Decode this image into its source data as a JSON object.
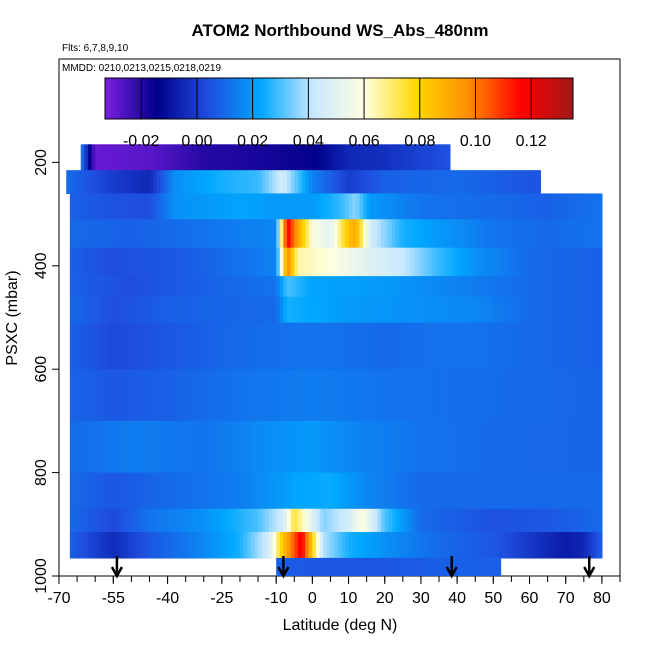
{
  "chart_data": {
    "type": "heatmap",
    "title": "ATOM2 Northbound WS_Abs_480nm",
    "flights_note": "Flts: 6,7,8,9,10",
    "dates_note": "MMDD: 0210,0213,0215,0218,0219",
    "xlabel": "Latitude (deg N)",
    "ylabel": "PSXC (mbar)",
    "xlim": [
      -70,
      85
    ],
    "ylim": [
      1000,
      0
    ],
    "x_ticks": [
      -70,
      -55,
      -40,
      -25,
      -10,
      0,
      10,
      20,
      30,
      40,
      50,
      60,
      70,
      80
    ],
    "x_tick_labels": [
      "-70",
      "-55",
      "-40",
      "-25",
      "-10",
      "0",
      "10",
      "20",
      "30",
      "40",
      "50",
      "60",
      "70",
      "80"
    ],
    "y_ticks": [
      200,
      400,
      600,
      800,
      1000
    ],
    "y_tick_labels": [
      "200",
      "400",
      "600",
      "800",
      "1000"
    ],
    "colorbar": {
      "min": -0.033,
      "max": 0.135,
      "ticks": [
        -0.02,
        0.0,
        0.02,
        0.04,
        0.06,
        0.08,
        0.1,
        0.12
      ],
      "tick_labels": [
        "-0.02",
        "0.00",
        "0.02",
        "0.04",
        "0.06",
        "0.08",
        "0.10",
        "0.12"
      ],
      "colors": [
        "#7a1fe0",
        "#00008b",
        "#1f4fe0",
        "#00a8ff",
        "#c8e8ff",
        "#ffffe0",
        "#ffd700",
        "#ff8c00",
        "#ff0000",
        "#a01818"
      ]
    },
    "arrow_latitudes": [
      -54,
      -8,
      38.5,
      76.5
    ],
    "base_value": 0.01,
    "layers": [
      {
        "p_top": 165,
        "p_bot": 215,
        "lat_min": -64,
        "lat_max": 38,
        "anchors": [
          [
            -64,
            0.015
          ],
          [
            -60,
            -0.03
          ],
          [
            -45,
            -0.028
          ],
          [
            -30,
            -0.02
          ],
          [
            -15,
            -0.018
          ],
          [
            0,
            -0.015
          ],
          [
            10,
            -0.005
          ],
          [
            20,
            -0.003
          ],
          [
            38,
            0.005
          ]
        ]
      },
      {
        "p_top": 215,
        "p_bot": 260,
        "lat_min": -68,
        "lat_max": 63,
        "anchors": [
          [
            -68,
            0.01
          ],
          [
            -55,
            0.0
          ],
          [
            -45,
            -0.005
          ],
          [
            -38,
            0.018
          ],
          [
            -25,
            0.025
          ],
          [
            -15,
            0.028
          ],
          [
            -8,
            0.045
          ],
          [
            -4,
            0.03
          ],
          [
            0,
            0.015
          ],
          [
            10,
            0.0
          ],
          [
            20,
            0.008
          ],
          [
            40,
            0.01
          ],
          [
            63,
            0.005
          ]
        ]
      },
      {
        "p_top": 260,
        "p_bot": 310,
        "lat_min": -67,
        "lat_max": 80,
        "anchors": [
          [
            -67,
            0.008
          ],
          [
            -55,
            0.005
          ],
          [
            -45,
            0.004
          ],
          [
            -38,
            0.018
          ],
          [
            -20,
            0.022
          ],
          [
            -10,
            0.02
          ],
          [
            0,
            0.02
          ],
          [
            8,
            0.028
          ],
          [
            12,
            0.036
          ],
          [
            16,
            0.02
          ],
          [
            30,
            0.012
          ],
          [
            50,
            0.01
          ],
          [
            65,
            0.008
          ],
          [
            80,
            0.012
          ]
        ]
      },
      {
        "p_top": 310,
        "p_bot": 365,
        "lat_min": -67,
        "lat_max": 80,
        "anchors": [
          [
            -67,
            0.01
          ],
          [
            -50,
            0.008
          ],
          [
            -30,
            0.012
          ],
          [
            -10,
            0.016
          ],
          [
            -7,
            0.12
          ],
          [
            -5,
            0.1
          ],
          [
            0,
            0.06
          ],
          [
            5,
            0.05
          ],
          [
            10,
            0.085
          ],
          [
            12,
            0.09
          ],
          [
            16,
            0.045
          ],
          [
            25,
            0.025
          ],
          [
            35,
            0.02
          ],
          [
            50,
            0.012
          ],
          [
            65,
            0.01
          ],
          [
            80,
            0.012
          ]
        ]
      },
      {
        "p_top": 365,
        "p_bot": 420,
        "lat_min": -67,
        "lat_max": 80,
        "anchors": [
          [
            -67,
            0.008
          ],
          [
            -55,
            0.004
          ],
          [
            -40,
            0.006
          ],
          [
            -25,
            0.01
          ],
          [
            -10,
            0.015
          ],
          [
            -7,
            0.1
          ],
          [
            -4,
            0.065
          ],
          [
            5,
            0.06
          ],
          [
            15,
            0.05
          ],
          [
            25,
            0.042
          ],
          [
            35,
            0.028
          ],
          [
            45,
            0.018
          ],
          [
            60,
            0.01
          ],
          [
            80,
            0.008
          ]
        ]
      },
      {
        "p_top": 420,
        "p_bot": 460,
        "lat_min": -67,
        "lat_max": 80,
        "anchors": [
          [
            -67,
            0.008
          ],
          [
            -50,
            0.004
          ],
          [
            -30,
            0.008
          ],
          [
            -10,
            0.012
          ],
          [
            -7,
            0.03
          ],
          [
            0,
            0.022
          ],
          [
            20,
            0.02
          ],
          [
            40,
            0.015
          ],
          [
            60,
            0.01
          ],
          [
            80,
            0.008
          ]
        ]
      },
      {
        "p_top": 460,
        "p_bot": 510,
        "lat_min": -67,
        "lat_max": 80,
        "anchors": [
          [
            -67,
            0.01
          ],
          [
            -55,
            0.004
          ],
          [
            -40,
            0.008
          ],
          [
            -10,
            0.01
          ],
          [
            -7,
            0.025
          ],
          [
            10,
            0.02
          ],
          [
            30,
            0.018
          ],
          [
            45,
            0.016
          ],
          [
            60,
            0.01
          ],
          [
            80,
            0.008
          ]
        ]
      },
      {
        "p_top": 510,
        "p_bot": 600,
        "lat_min": -67,
        "lat_max": 80,
        "anchors": [
          [
            -67,
            0.008
          ],
          [
            -55,
            0.003
          ],
          [
            -40,
            0.006
          ],
          [
            -20,
            0.01
          ],
          [
            0,
            0.012
          ],
          [
            20,
            0.01
          ],
          [
            40,
            0.012
          ],
          [
            60,
            0.01
          ],
          [
            80,
            0.008
          ]
        ]
      },
      {
        "p_top": 600,
        "p_bot": 700,
        "lat_min": -67,
        "lat_max": 80,
        "anchors": [
          [
            -67,
            0.009
          ],
          [
            -55,
            0.006
          ],
          [
            -40,
            0.008
          ],
          [
            -20,
            0.012
          ],
          [
            0,
            0.014
          ],
          [
            20,
            0.012
          ],
          [
            40,
            0.011
          ],
          [
            60,
            0.01
          ],
          [
            80,
            0.009
          ]
        ]
      },
      {
        "p_top": 700,
        "p_bot": 800,
        "lat_min": -67,
        "lat_max": 80,
        "anchors": [
          [
            -67,
            0.01
          ],
          [
            -50,
            0.014
          ],
          [
            -30,
            0.012
          ],
          [
            -10,
            0.018
          ],
          [
            0,
            0.02
          ],
          [
            10,
            0.016
          ],
          [
            30,
            0.012
          ],
          [
            50,
            0.01
          ],
          [
            80,
            0.009
          ]
        ]
      },
      {
        "p_top": 800,
        "p_bot": 870,
        "lat_min": -67,
        "lat_max": 80,
        "anchors": [
          [
            -67,
            0.01
          ],
          [
            -55,
            0.006
          ],
          [
            -40,
            0.01
          ],
          [
            -20,
            0.014
          ],
          [
            -5,
            0.022
          ],
          [
            5,
            0.024
          ],
          [
            15,
            0.016
          ],
          [
            30,
            0.01
          ],
          [
            50,
            0.01
          ],
          [
            80,
            0.01
          ]
        ]
      },
      {
        "p_top": 870,
        "p_bot": 915,
        "lat_min": -67,
        "lat_max": 80,
        "anchors": [
          [
            -67,
            0.01
          ],
          [
            -55,
            0.003
          ],
          [
            -45,
            0.012
          ],
          [
            -30,
            0.018
          ],
          [
            -15,
            0.03
          ],
          [
            -8,
            0.045
          ],
          [
            -5,
            0.075
          ],
          [
            -2,
            0.06
          ],
          [
            3,
            0.035
          ],
          [
            10,
            0.045
          ],
          [
            14,
            0.06
          ],
          [
            20,
            0.03
          ],
          [
            30,
            0.01
          ],
          [
            50,
            0.005
          ],
          [
            65,
            0.006
          ],
          [
            80,
            0.01
          ]
        ]
      },
      {
        "p_top": 915,
        "p_bot": 965,
        "lat_min": -67,
        "lat_max": 80,
        "anchors": [
          [
            -67,
            0.008
          ],
          [
            -55,
            -0.004
          ],
          [
            -45,
            0.006
          ],
          [
            -30,
            0.016
          ],
          [
            -20,
            0.025
          ],
          [
            -12,
            0.045
          ],
          [
            -8,
            0.085
          ],
          [
            -5,
            0.105
          ],
          [
            -3,
            0.12
          ],
          [
            0,
            0.08
          ],
          [
            3,
            0.04
          ],
          [
            10,
            0.025
          ],
          [
            20,
            0.018
          ],
          [
            35,
            0.01
          ],
          [
            50,
            0.006
          ],
          [
            70,
            -0.008
          ],
          [
            75,
            -0.005
          ],
          [
            80,
            0.008
          ]
        ]
      },
      {
        "p_top": 965,
        "p_bot": 1000,
        "lat_min": -10,
        "lat_max": 52,
        "anchors": [
          [
            -10,
            0.008
          ],
          [
            0,
            0.006
          ],
          [
            20,
            0.006
          ],
          [
            40,
            0.008
          ],
          [
            52,
            0.008
          ]
        ]
      }
    ]
  }
}
